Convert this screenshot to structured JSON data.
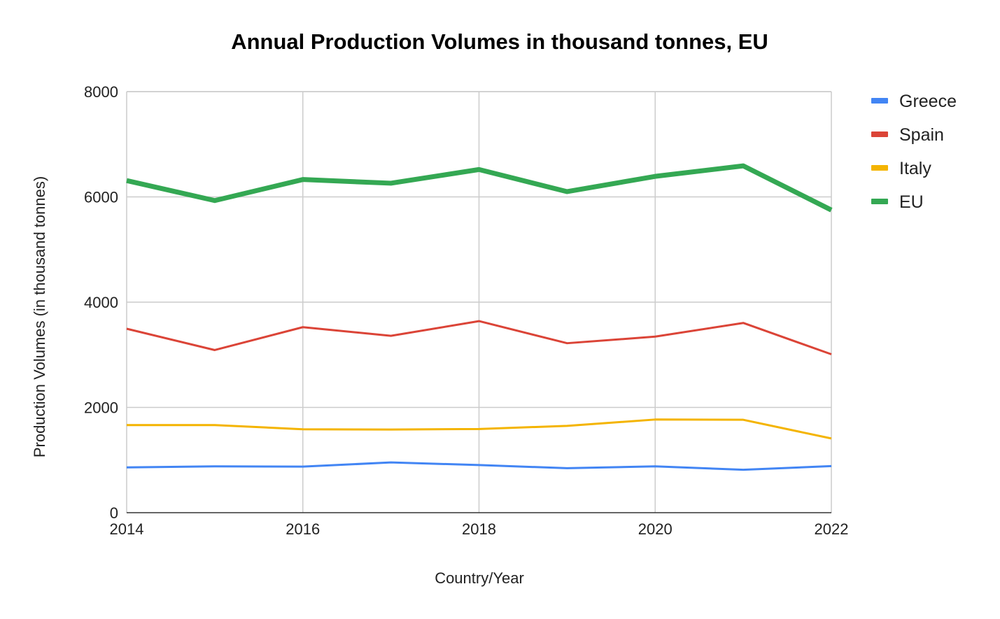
{
  "chart_data": {
    "type": "line",
    "title": "Annual Production Volumes in thousand tonnes, EU",
    "xlabel": "Country/Year",
    "ylabel": "Production Volumes (in thousand tonnes)",
    "x": [
      2014,
      2015,
      2016,
      2017,
      2018,
      2019,
      2020,
      2021,
      2022
    ],
    "xlim": [
      2014,
      2022
    ],
    "x_ticks": [
      2014,
      2016,
      2018,
      2020,
      2022
    ],
    "ylim": [
      0,
      8000
    ],
    "y_ticks": [
      0,
      2000,
      4000,
      6000,
      8000
    ],
    "grid": true,
    "legend_position": "right",
    "series": [
      {
        "name": "Greece",
        "color": "#4285f4",
        "values": [
          860,
          880,
          875,
          955,
          905,
          845,
          880,
          815,
          885
        ]
      },
      {
        "name": "Spain",
        "color": "#db4437",
        "values": [
          3495,
          3090,
          3525,
          3360,
          3640,
          3220,
          3345,
          3605,
          3010
        ]
      },
      {
        "name": "Italy",
        "color": "#f4b400",
        "values": [
          1665,
          1665,
          1585,
          1580,
          1590,
          1650,
          1770,
          1765,
          1410
        ]
      },
      {
        "name": "EU",
        "color": "#34a853",
        "values": [
          6310,
          5930,
          6330,
          6260,
          6520,
          6100,
          6390,
          6590,
          5750
        ]
      }
    ]
  }
}
